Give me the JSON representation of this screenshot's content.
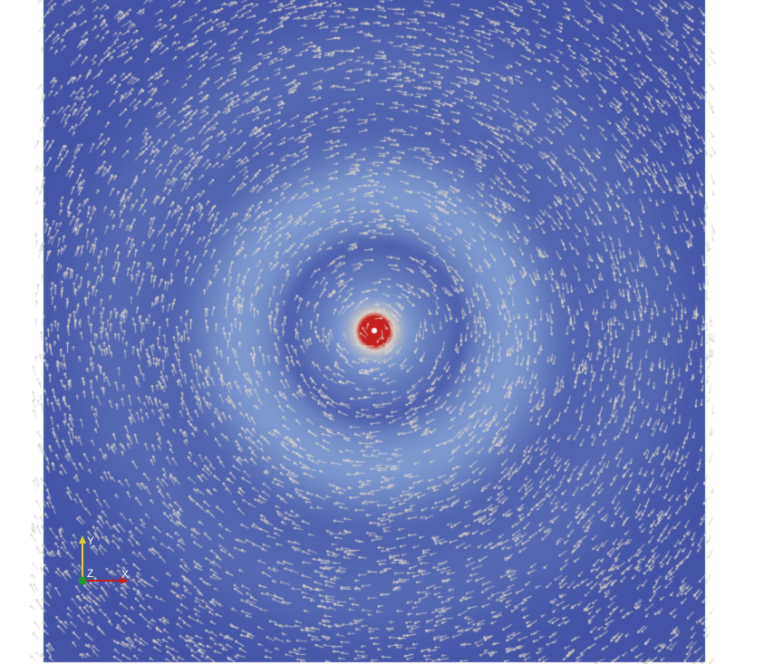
{
  "scene": {
    "title": "",
    "background_color": "#ffffff",
    "field_colors": {
      "low": "#3b4ba0",
      "mid": "#7c98cf",
      "high": "#d9cfc4",
      "peak": "#c4201e",
      "center": "#ffffff"
    },
    "glyph_color": "#d8d4cc"
  },
  "orientation_axes": {
    "x_label": "X",
    "y_label": "Y",
    "z_label": "Z",
    "x_color": "#c91c1c",
    "y_color": "#e6d21e",
    "z_color": "#1c9a2a"
  }
}
